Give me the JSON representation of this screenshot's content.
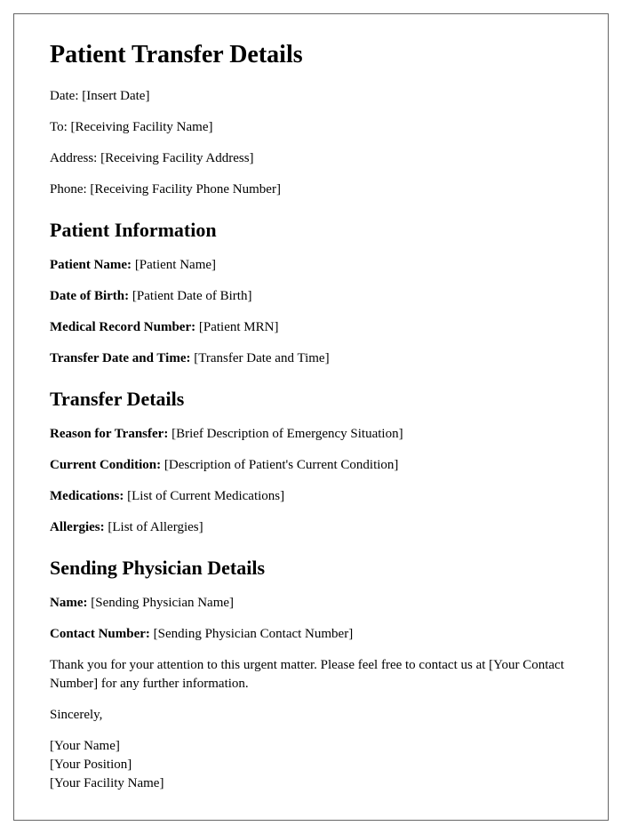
{
  "title": "Patient Transfer Details",
  "header": {
    "date_label": "Date:",
    "date_value": "[Insert Date]",
    "to_label": "To:",
    "to_value": "[Receiving Facility Name]",
    "address_label": "Address:",
    "address_value": "[Receiving Facility Address]",
    "phone_label": "Phone:",
    "phone_value": "[Receiving Facility Phone Number]"
  },
  "patient_info": {
    "heading": "Patient Information",
    "name_label": "Patient Name:",
    "name_value": "[Patient Name]",
    "dob_label": "Date of Birth:",
    "dob_value": "[Patient Date of Birth]",
    "mrn_label": "Medical Record Number:",
    "mrn_value": "[Patient MRN]",
    "transfer_label": "Transfer Date and Time:",
    "transfer_value": "[Transfer Date and Time]"
  },
  "transfer_details": {
    "heading": "Transfer Details",
    "reason_label": "Reason for Transfer:",
    "reason_value": "[Brief Description of Emergency Situation]",
    "condition_label": "Current Condition:",
    "condition_value": "[Description of Patient's Current Condition]",
    "medications_label": "Medications:",
    "medications_value": "[List of Current Medications]",
    "allergies_label": "Allergies:",
    "allergies_value": "[List of Allergies]"
  },
  "physician": {
    "heading": "Sending Physician Details",
    "name_label": "Name:",
    "name_value": "[Sending Physician Name]",
    "contact_label": "Contact Number:",
    "contact_value": "[Sending Physician Contact Number]"
  },
  "closing": {
    "thanks": "Thank you for your attention to this urgent matter. Please feel free to contact us at [Your Contact Number] for any further information.",
    "sincerely": "Sincerely,",
    "name": "[Your Name]",
    "position": "[Your Position]",
    "facility": "[Your Facility Name]"
  },
  "styling": {
    "page_border_color": "#666666",
    "background_color": "#ffffff",
    "text_color": "#000000",
    "h1_fontsize": 28,
    "h2_fontsize": 22,
    "body_fontsize": 15,
    "font_family": "Georgia, Times New Roman, serif"
  }
}
